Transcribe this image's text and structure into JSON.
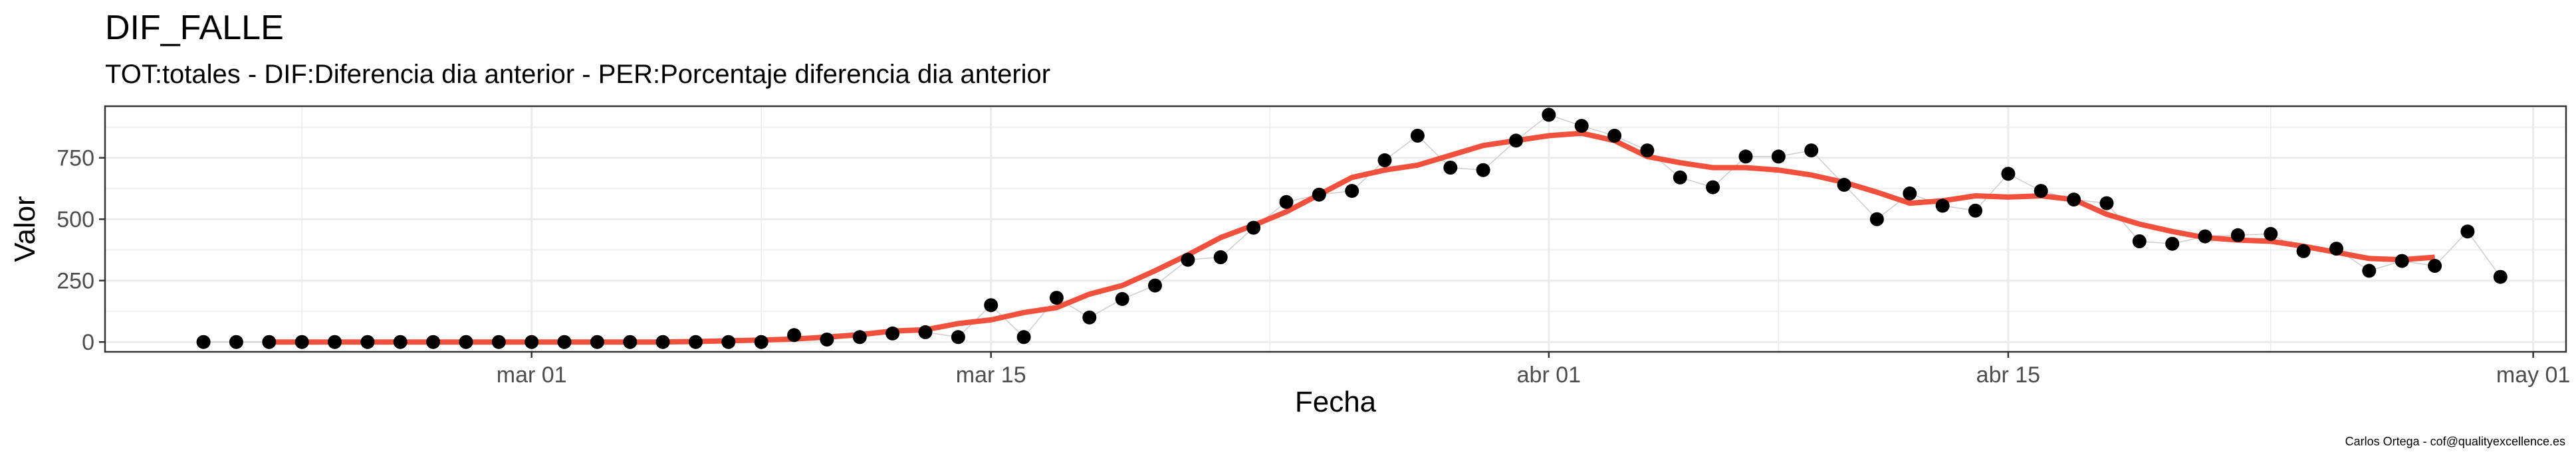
{
  "title": "DIF_FALLE",
  "subtitle": "TOT:totales - DIF:Diferencia dia anterior - PER:Porcentaje diferencia dia anterior",
  "caption": "Carlos Ortega - cof@qualityexcellence.es",
  "colors": {
    "points": "#000000",
    "smooth": "#f0503c",
    "connector": "#cccccc",
    "grid": "#ebebeb",
    "panel_border": "#333333"
  },
  "chart_data": {
    "type": "scatter",
    "xlabel": "Fecha",
    "ylabel": "Valor",
    "x_ticks": [
      {
        "date": "2020-03-01",
        "label": "mar 01"
      },
      {
        "date": "2020-03-15",
        "label": "mar 15"
      },
      {
        "date": "2020-04-01",
        "label": "abr 01"
      },
      {
        "date": "2020-04-15",
        "label": "abr 15"
      },
      {
        "date": "2020-05-01",
        "label": "may 01"
      }
    ],
    "y_ticks": [
      {
        "value": 0,
        "label": "0"
      },
      {
        "value": 250,
        "label": "250"
      },
      {
        "value": 500,
        "label": "500"
      },
      {
        "value": 750,
        "label": "750"
      }
    ],
    "xlim": [
      "2020-02-17",
      "2020-05-02"
    ],
    "ylim": [
      -40,
      960
    ],
    "grid": true,
    "series": [
      {
        "type": "points",
        "x": [
          "2020-02-20",
          "2020-02-21",
          "2020-02-22",
          "2020-02-23",
          "2020-02-24",
          "2020-02-25",
          "2020-02-26",
          "2020-02-27",
          "2020-02-28",
          "2020-02-29",
          "2020-03-01",
          "2020-03-02",
          "2020-03-03",
          "2020-03-04",
          "2020-03-05",
          "2020-03-06",
          "2020-03-07",
          "2020-03-08",
          "2020-03-09",
          "2020-03-10",
          "2020-03-11",
          "2020-03-12",
          "2020-03-13",
          "2020-03-14",
          "2020-03-15",
          "2020-03-16",
          "2020-03-17",
          "2020-03-18",
          "2020-03-19",
          "2020-03-20",
          "2020-03-21",
          "2020-03-22",
          "2020-03-23",
          "2020-03-24",
          "2020-03-25",
          "2020-03-26",
          "2020-03-27",
          "2020-03-28",
          "2020-03-29",
          "2020-03-30",
          "2020-03-31",
          "2020-04-01",
          "2020-04-02",
          "2020-04-03",
          "2020-04-04",
          "2020-04-05",
          "2020-04-06",
          "2020-04-07",
          "2020-04-08",
          "2020-04-09",
          "2020-04-10",
          "2020-04-11",
          "2020-04-12",
          "2020-04-13",
          "2020-04-14",
          "2020-04-15",
          "2020-04-16",
          "2020-04-17",
          "2020-04-18",
          "2020-04-19",
          "2020-04-20",
          "2020-04-21",
          "2020-04-22",
          "2020-04-23",
          "2020-04-24",
          "2020-04-25",
          "2020-04-26",
          "2020-04-27",
          "2020-04-28",
          "2020-04-29",
          "2020-04-30"
        ],
        "y": [
          0,
          0,
          0,
          0,
          0,
          0,
          0,
          0,
          0,
          0,
          0,
          0,
          0,
          0,
          0,
          0,
          0,
          0,
          28,
          10,
          20,
          35,
          40,
          20,
          150,
          20,
          180,
          100,
          175,
          230,
          335,
          345,
          465,
          570,
          600,
          615,
          740,
          840,
          710,
          700,
          820,
          925,
          880,
          840,
          780,
          670,
          630,
          755,
          755,
          780,
          640,
          500,
          605,
          555,
          535,
          685,
          615,
          580,
          565,
          410,
          400,
          430,
          435,
          440,
          370,
          380,
          290,
          330,
          310,
          450,
          265
        ]
      },
      {
        "type": "smooth",
        "x": [
          "2020-02-22",
          "2020-02-23",
          "2020-02-24",
          "2020-02-25",
          "2020-02-26",
          "2020-02-27",
          "2020-02-28",
          "2020-02-29",
          "2020-03-01",
          "2020-03-02",
          "2020-03-03",
          "2020-03-04",
          "2020-03-05",
          "2020-03-06",
          "2020-03-07",
          "2020-03-08",
          "2020-03-09",
          "2020-03-10",
          "2020-03-11",
          "2020-03-12",
          "2020-03-13",
          "2020-03-14",
          "2020-03-15",
          "2020-03-16",
          "2020-03-17",
          "2020-03-18",
          "2020-03-19",
          "2020-03-20",
          "2020-03-21",
          "2020-03-22",
          "2020-03-23",
          "2020-03-24",
          "2020-03-25",
          "2020-03-26",
          "2020-03-27",
          "2020-03-28",
          "2020-03-29",
          "2020-03-30",
          "2020-03-31",
          "2020-04-01",
          "2020-04-02",
          "2020-04-03",
          "2020-04-04",
          "2020-04-05",
          "2020-04-06",
          "2020-04-07",
          "2020-04-08",
          "2020-04-09",
          "2020-04-10",
          "2020-04-11",
          "2020-04-12",
          "2020-04-13",
          "2020-04-14",
          "2020-04-15",
          "2020-04-16",
          "2020-04-17",
          "2020-04-18",
          "2020-04-19",
          "2020-04-20",
          "2020-04-21",
          "2020-04-22",
          "2020-04-23",
          "2020-04-24",
          "2020-04-25",
          "2020-04-26",
          "2020-04-27",
          "2020-04-28"
        ],
        "y": [
          0,
          0,
          0,
          0,
          0,
          0,
          0,
          0,
          0,
          0,
          0,
          0,
          0,
          2,
          5,
          8,
          12,
          20,
          30,
          45,
          50,
          75,
          90,
          120,
          140,
          195,
          230,
          290,
          355,
          425,
          475,
          530,
          600,
          670,
          700,
          720,
          760,
          800,
          820,
          840,
          850,
          820,
          755,
          730,
          710,
          710,
          700,
          680,
          650,
          610,
          565,
          575,
          595,
          590,
          595,
          580,
          520,
          480,
          450,
          425,
          415,
          410,
          390,
          365,
          340,
          335,
          345
        ]
      }
    ]
  }
}
